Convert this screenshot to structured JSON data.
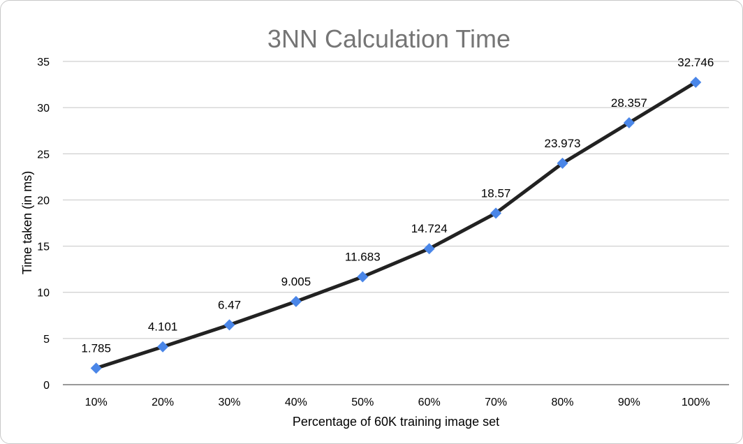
{
  "chart_data": {
    "type": "line",
    "title": "3NN Calculation Time",
    "xlabel": "Percentage of 60K training image set",
    "ylabel": "Time taken (in ms)",
    "categories": [
      "10%",
      "20%",
      "30%",
      "40%",
      "50%",
      "60%",
      "70%",
      "80%",
      "90%",
      "100%"
    ],
    "values": [
      1.785,
      4.101,
      6.47,
      9.005,
      11.683,
      14.724,
      18.57,
      23.973,
      28.357,
      32.746
    ],
    "data_labels": [
      "1.785",
      "4.101",
      "6.47",
      "9.005",
      "11.683",
      "14.724",
      "18.57",
      "23.973",
      "28.357",
      "32.746"
    ],
    "ylim": [
      0,
      35
    ],
    "yticks": [
      "0",
      "5",
      "10",
      "15",
      "20",
      "25",
      "30",
      "35"
    ],
    "grid": true,
    "legend": "none",
    "colors": {
      "line": "#222222",
      "marker": "#4a86e8",
      "title": "#757575",
      "grid": "#c4c4c4"
    }
  }
}
